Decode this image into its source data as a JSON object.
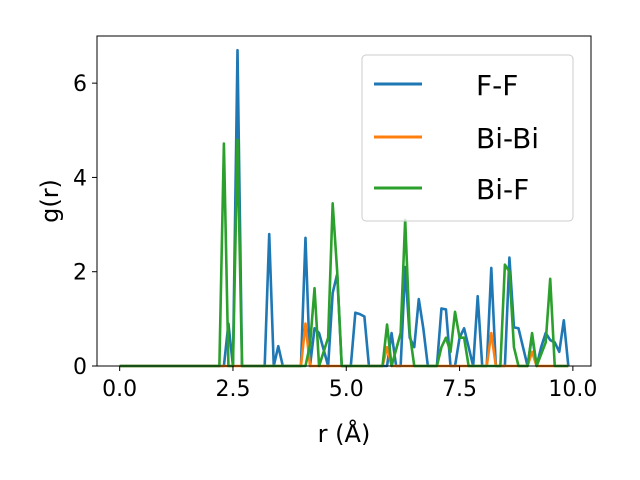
{
  "chart_data": {
    "type": "line",
    "xlabel": "r (Å)",
    "ylabel": "g(r)",
    "xlim": [
      -0.5,
      10.4
    ],
    "ylim": [
      0,
      7.0
    ],
    "xticks": [
      0.0,
      2.5,
      5.0,
      7.5,
      10.0
    ],
    "xtick_labels": [
      "0.0",
      "2.5",
      "5.0",
      "7.5",
      "10.0"
    ],
    "yticks": [
      0,
      2,
      4,
      6
    ],
    "ytick_labels": [
      "0",
      "2",
      "4",
      "6"
    ],
    "grid": false,
    "legend_position": "top-right",
    "series": [
      {
        "name": "F-F",
        "color": "#1f77b4",
        "x": [
          0.0,
          2.2,
          2.3,
          2.4,
          2.5,
          2.6,
          2.7,
          3.2,
          3.3,
          3.4,
          3.5,
          3.6,
          4.0,
          4.1,
          4.2,
          4.3,
          4.4,
          4.6,
          4.7,
          4.8,
          4.9,
          5.1,
          5.2,
          5.3,
          5.4,
          5.5,
          5.9,
          6.0,
          6.1,
          6.2,
          6.3,
          6.4,
          6.5,
          6.6,
          6.7,
          6.8,
          7.0,
          7.1,
          7.2,
          7.3,
          7.4,
          7.5,
          7.6,
          7.8,
          7.9,
          8.0,
          8.1,
          8.2,
          8.3,
          8.5,
          8.6,
          8.7,
          8.8,
          8.9,
          9.0,
          9.1,
          9.2,
          9.3,
          9.4,
          9.5,
          9.6,
          9.7,
          9.8,
          9.9
        ],
        "y": [
          0,
          0,
          0,
          0.9,
          0,
          6.7,
          0,
          0,
          2.8,
          0,
          0.42,
          0,
          0,
          2.72,
          0,
          0.8,
          0.7,
          0,
          1.55,
          1.95,
          0,
          0,
          1.13,
          1.1,
          1.05,
          0,
          0,
          0.7,
          0,
          0,
          2.1,
          0.6,
          0.4,
          1.42,
          0.8,
          0,
          0,
          1.22,
          1.2,
          0,
          0,
          0.6,
          0.8,
          0,
          1.48,
          0,
          0,
          2.08,
          0,
          0,
          2.3,
          0.82,
          0.8,
          0.4,
          0,
          0.65,
          0,
          0.4,
          0.7,
          0.55,
          0.5,
          0.3,
          0.97,
          0
        ]
      },
      {
        "name": "Bi-Bi",
        "color": "#ff7f0e",
        "x": [
          0.0,
          4.0,
          4.1,
          4.2,
          5.8,
          5.9,
          6.0,
          8.1,
          8.2,
          8.3,
          9.0,
          9.1,
          9.2,
          9.9
        ],
        "y": [
          0,
          0,
          0.9,
          0,
          0,
          0.4,
          0,
          0,
          0.7,
          0,
          0,
          0.3,
          0,
          0
        ]
      },
      {
        "name": "Bi-F",
        "color": "#2ca02c",
        "x": [
          0.0,
          2.2,
          2.3,
          2.4,
          2.5,
          2.6,
          2.7,
          4.1,
          4.2,
          4.3,
          4.4,
          4.6,
          4.7,
          4.8,
          4.9,
          5.8,
          5.9,
          6.0,
          6.2,
          6.3,
          6.4,
          6.5,
          7.0,
          7.1,
          7.2,
          7.3,
          7.4,
          7.5,
          7.6,
          7.7,
          8.4,
          8.5,
          8.6,
          8.7,
          8.8,
          9.0,
          9.1,
          9.2,
          9.4,
          9.5,
          9.6,
          9.9
        ],
        "y": [
          0,
          0,
          4.72,
          0,
          0,
          4.8,
          0,
          0,
          0.45,
          1.65,
          0,
          0.6,
          3.45,
          2.0,
          0,
          0,
          0.88,
          0,
          0.7,
          3.1,
          0.7,
          0,
          0,
          0.4,
          0.6,
          0.3,
          1.15,
          0.6,
          0.6,
          0,
          0,
          2.15,
          2.0,
          0.4,
          0,
          0,
          0.7,
          0,
          0.5,
          1.85,
          0,
          0
        ]
      }
    ]
  }
}
